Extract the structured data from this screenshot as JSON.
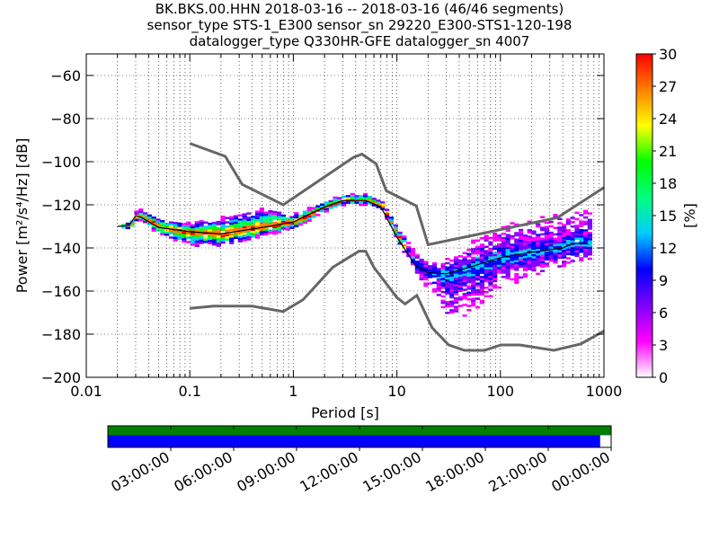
{
  "chart_data": {
    "type": "heatmap",
    "title_lines": [
      "BK.BKS.00.HHN   2018-03-16 -- 2018-03-16  (46/46 segments)",
      "sensor_type STS-1_E300 sensor_sn 29220_E300-STS1-120-198",
      "datalogger_type Q330HR-GFE datalogger_sn 4007"
    ],
    "xlabel": "Period [s]",
    "ylabel": "Power [m²/s⁴/Hz] [dB]",
    "xscale": "log",
    "xlim": [
      0.01,
      1000
    ],
    "ylim": [
      -200,
      -50
    ],
    "xticks": [
      0.01,
      0.1,
      1,
      10,
      100,
      1000
    ],
    "xtick_labels": [
      "0.01",
      "0.1",
      "1",
      "10",
      "100",
      "1000"
    ],
    "yticks": [
      -60,
      -80,
      -100,
      -120,
      -140,
      -160,
      -180,
      -200
    ],
    "ytick_labels": [
      "−60",
      "−80",
      "−100",
      "−120",
      "−140",
      "−160",
      "−180",
      "−200"
    ],
    "grid": true,
    "colorbar": {
      "label": "[%]",
      "range": [
        0,
        30
      ],
      "ticks": [
        "0",
        "3",
        "6",
        "9",
        "12",
        "15",
        "18",
        "21",
        "24",
        "27",
        "30"
      ],
      "colors": [
        "#ffffff",
        "#ff00ff",
        "#8000ff",
        "#0000ff",
        "#00ccff",
        "#00ff80",
        "#00ff00",
        "#ffff00",
        "#ff8000",
        "#ff0000"
      ]
    },
    "high_noise_model": {
      "period": [
        0.1,
        0.22,
        0.32,
        0.8,
        3.8,
        4.6,
        6.3,
        7.9,
        15.4,
        20,
        354,
        1000
      ],
      "power": [
        -91.5,
        -97.5,
        -110.5,
        -120,
        -98,
        -96.5,
        -101,
        -113.5,
        -120.5,
        -138.5,
        -126,
        -112
      ]
    },
    "low_noise_model": {
      "period": [
        0.1,
        0.17,
        0.4,
        0.8,
        1.24,
        2.4,
        4.3,
        5,
        6,
        10,
        12,
        15.6,
        21.9,
        31.6,
        45,
        70,
        101,
        154,
        328,
        600,
        1000
      ],
      "power": [
        -168,
        -167,
        -167,
        -169.5,
        -164,
        -149,
        -141.5,
        -141.5,
        -149,
        -163,
        -166,
        -162,
        -177,
        -185,
        -187.5,
        -187.5,
        -185,
        -185,
        -187.5,
        -184.5,
        -178.5
      ]
    },
    "mean": {
      "period": [
        0.02,
        0.026,
        0.03,
        0.033,
        0.05,
        0.1,
        0.2,
        0.5,
        1,
        2,
        3,
        5,
        7,
        10,
        15,
        20,
        30,
        50,
        100,
        200,
        400,
        500,
        700
      ],
      "power": [
        -130,
        -129.5,
        -125,
        -125.5,
        -130.5,
        -132.5,
        -133.5,
        -130.5,
        -128,
        -121,
        -118,
        -118,
        -121,
        -135,
        -148,
        -151.5,
        -152,
        -149,
        -144.5,
        -142,
        -140,
        -138,
        -138
      ]
    },
    "density_spread": {
      "period": [
        0.02,
        0.03,
        0.05,
        0.1,
        0.2,
        0.5,
        1,
        2,
        5,
        8,
        12,
        20,
        30,
        50,
        100,
        300,
        700
      ],
      "above_db": [
        1,
        3,
        4,
        4,
        8,
        9,
        4,
        3,
        3,
        3,
        4,
        5,
        7,
        12,
        15,
        16,
        15
      ],
      "below_db": [
        1,
        2,
        4,
        7,
        6,
        4,
        3,
        2,
        2,
        2,
        4,
        8,
        22,
        22,
        14,
        10,
        9
      ]
    },
    "time_axis": {
      "tick_labels": [
        "03:00:00",
        "06:00:00",
        "09:00:00",
        "12:00:00",
        "15:00:00",
        "18:00:00",
        "21:00:00",
        "00:00:00"
      ],
      "data_coverage_fraction": 0.979
    }
  }
}
